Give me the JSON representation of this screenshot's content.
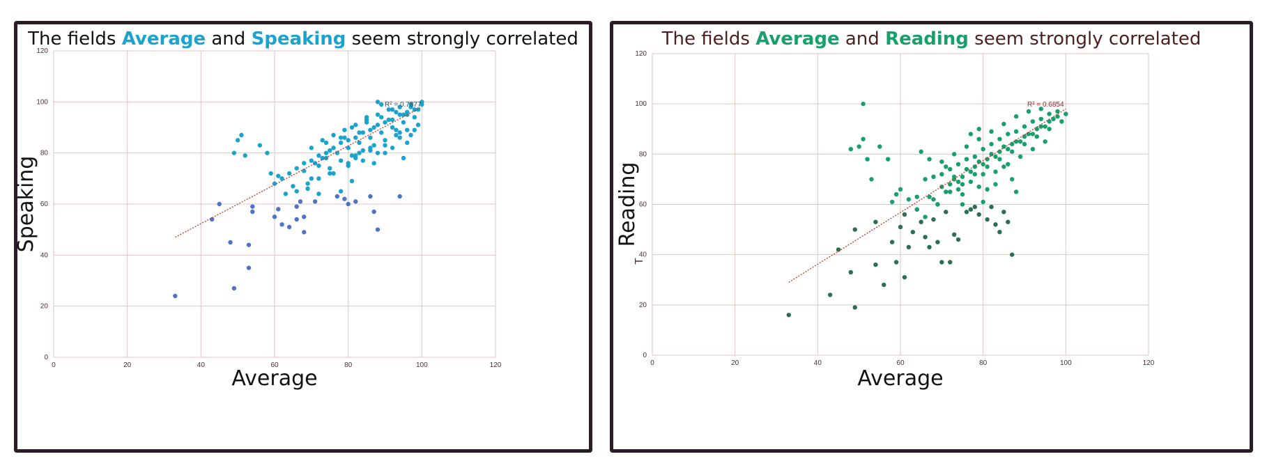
{
  "chart_data": [
    {
      "type": "scatter",
      "title_parts": [
        {
          "text": "The fields ",
          "highlight": false
        },
        {
          "text": "Average",
          "highlight": true
        },
        {
          "text": " and ",
          "highlight": false
        },
        {
          "text": "Speaking",
          "highlight": true
        },
        {
          "text": " seem strongly correlated",
          "highlight": false
        }
      ],
      "xlabel": "Average",
      "ylabel": "Speaking",
      "xlim": [
        0,
        120
      ],
      "ylim": [
        0,
        120
      ],
      "xticks": [
        0,
        20,
        40,
        60,
        80,
        100,
        120
      ],
      "yticks": [
        0,
        20,
        40,
        60,
        80,
        100,
        120
      ],
      "grid": true,
      "r2_label": "R² = 0.7877",
      "trendline": {
        "x": [
          33,
          100
        ],
        "y": [
          47,
          98
        ]
      },
      "colors": {
        "point": "#1aa3cc",
        "outlier": "#4f73c9",
        "trend": "#c0392b",
        "title_text": "#111111",
        "title_highlight": "#1aa3cc",
        "grid": "#e3c2c6"
      },
      "series": [
        {
          "x": [
            33,
            43,
            45,
            48,
            49,
            49,
            50,
            51,
            52,
            53,
            53,
            54,
            54,
            56,
            58,
            59,
            60,
            60,
            61,
            61,
            62,
            63,
            64,
            65,
            66,
            66,
            67,
            68,
            68,
            69,
            70,
            71,
            72,
            73,
            75,
            77,
            78,
            79,
            80,
            80,
            81,
            82,
            83,
            86,
            87,
            87,
            88,
            94,
            95,
            97
          ],
          "y": [
            24,
            54,
            60,
            45,
            27,
            80,
            85,
            87,
            79,
            44,
            35,
            59,
            57,
            83,
            80,
            72,
            55,
            68,
            58,
            71,
            52,
            64,
            51,
            67,
            54,
            59,
            61,
            49,
            55,
            66,
            70,
            61,
            75,
            78,
            81,
            63,
            65,
            62,
            60,
            76,
            69,
            61,
            80,
            63,
            57,
            76,
            50,
            63,
            78,
            87
          ]
        },
        {
          "x": [
            62,
            64,
            66,
            68,
            70,
            72,
            74,
            76,
            78,
            80,
            82,
            84,
            86,
            88,
            90,
            92,
            94,
            96,
            98,
            100,
            70,
            73,
            76,
            79,
            82,
            85,
            88,
            91,
            94,
            97,
            68,
            71,
            74,
            77,
            80,
            83,
            86,
            89,
            92,
            95,
            98,
            75,
            78,
            81,
            84,
            87,
            90,
            93,
            96,
            99,
            72,
            76,
            80,
            84,
            88,
            92,
            96,
            79,
            83,
            87,
            91,
            95,
            99,
            82,
            86,
            90,
            94,
            98,
            85,
            89,
            93,
            97,
            88,
            92,
            96,
            100,
            74,
            78,
            82,
            86,
            90,
            94,
            66,
            69,
            72,
            75,
            81,
            85,
            89,
            93
          ],
          "y": [
            70,
            72,
            74,
            76,
            77,
            79,
            80,
            82,
            84,
            85,
            86,
            88,
            89,
            91,
            92,
            93,
            95,
            96,
            97,
            99,
            82,
            85,
            87,
            89,
            91,
            93,
            95,
            97,
            98,
            99,
            73,
            76,
            78,
            80,
            82,
            84,
            86,
            88,
            90,
            92,
            94,
            74,
            77,
            79,
            81,
            83,
            85,
            87,
            89,
            91,
            70,
            72,
            75,
            77,
            80,
            82,
            84,
            86,
            88,
            90,
            93,
            95,
            97,
            78,
            81,
            83,
            86,
            89,
            92,
            94,
            96,
            98,
            100,
            97,
            95,
            100,
            84,
            86,
            79,
            82,
            80,
            88,
            65,
            68,
            64,
            72,
            90,
            94,
            99,
            89
          ]
        }
      ]
    },
    {
      "type": "scatter",
      "title_parts": [
        {
          "text": "The fields ",
          "highlight": false
        },
        {
          "text": "Average",
          "highlight": true
        },
        {
          "text": " and ",
          "highlight": false
        },
        {
          "text": "Reading",
          "highlight": true
        },
        {
          "text": " seem strongly correlated",
          "highlight": false
        }
      ],
      "xlabel": "Average",
      "ylabel": "Reading",
      "ylabel_extra": "T",
      "xlim": [
        0,
        120
      ],
      "ylim": [
        0,
        120
      ],
      "xticks": [
        0,
        20,
        40,
        60,
        80,
        100,
        120
      ],
      "yticks": [
        0,
        20,
        40,
        60,
        80,
        100,
        120
      ],
      "grid": true,
      "r2_label": "R² = 0.6854",
      "trendline": {
        "x": [
          33,
          100
        ],
        "y": [
          29,
          98
        ]
      },
      "colors": {
        "point": "#17a06b",
        "outlier": "#2a7050",
        "trend": "#c0392b",
        "title_text": "#4a1f20",
        "title_highlight": "#17a06b",
        "grid": "#e3c2c6"
      },
      "series": [
        {
          "x": [
            33,
            43,
            45,
            48,
            48,
            49,
            49,
            50,
            51,
            52,
            53,
            54,
            54,
            55,
            56,
            57,
            58,
            59,
            60,
            61,
            61,
            62,
            63,
            64,
            65,
            66,
            67,
            68,
            69,
            70,
            71,
            72,
            73,
            74,
            75,
            76,
            77,
            78,
            79,
            80,
            81,
            82,
            83,
            84,
            85,
            86,
            87,
            88
          ],
          "y": [
            16,
            24,
            42,
            33,
            82,
            19,
            50,
            83,
            86,
            78,
            70,
            36,
            53,
            83,
            28,
            78,
            45,
            37,
            51,
            56,
            31,
            43,
            49,
            58,
            53,
            47,
            43,
            54,
            45,
            37,
            57,
            37,
            48,
            46,
            60,
            57,
            58,
            59,
            56,
            61,
            54,
            59,
            52,
            49,
            57,
            53,
            40,
            65
          ]
        },
        {
          "x": [
            60,
            62,
            64,
            66,
            68,
            70,
            72,
            74,
            76,
            78,
            80,
            82,
            84,
            86,
            88,
            90,
            92,
            94,
            96,
            98,
            100,
            64,
            67,
            70,
            73,
            76,
            79,
            82,
            85,
            88,
            91,
            94,
            97,
            66,
            69,
            72,
            75,
            78,
            81,
            84,
            87,
            90,
            93,
            96,
            99,
            68,
            71,
            74,
            77,
            80,
            83,
            86,
            89,
            92,
            95,
            98,
            70,
            73,
            76,
            79,
            82,
            85,
            88,
            91,
            94,
            72,
            75,
            78,
            81,
            84,
            87,
            90,
            93,
            96,
            74,
            77,
            80,
            83,
            86,
            89,
            92,
            95,
            65,
            67,
            69,
            71,
            73,
            75,
            77,
            79,
            81,
            83,
            85,
            87,
            51,
            59,
            79,
            58
          ],
          "y": [
            66,
            62,
            63,
            70,
            71,
            72,
            74,
            76,
            78,
            79,
            82,
            84,
            86,
            88,
            89,
            91,
            93,
            94,
            96,
            97,
            96,
            58,
            63,
            67,
            70,
            74,
            77,
            80,
            83,
            85,
            88,
            91,
            94,
            55,
            60,
            65,
            68,
            72,
            75,
            78,
            81,
            84,
            87,
            90,
            93,
            62,
            65,
            69,
            73,
            76,
            79,
            82,
            85,
            88,
            91,
            95,
            77,
            80,
            83,
            86,
            89,
            92,
            95,
            97,
            98,
            68,
            71,
            75,
            78,
            81,
            84,
            87,
            90,
            93,
            66,
            69,
            72,
            73,
            76,
            79,
            82,
            85,
            81,
            78,
            60,
            75,
            71,
            64,
            88,
            90,
            66,
            68,
            75,
            70,
            100,
            64,
            67,
            61
          ]
        }
      ]
    }
  ]
}
